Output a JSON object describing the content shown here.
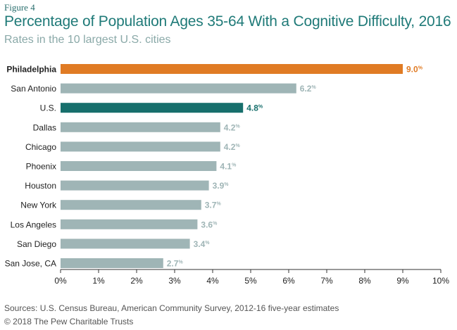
{
  "figure_label": "Figure 4",
  "title": "Percentage of Population Ages 35-64 With a Cognitive Difficulty, 2016",
  "subtitle": "Rates in the 10 largest U.S. cities",
  "source": "Sources: U.S. Census Bureau, American Community Survey, 2012-16 five-year estimates",
  "copyright": "© 2018 The Pew Charitable Trusts",
  "colors": {
    "highlight": "#e07b24",
    "us": "#176f6c",
    "default": "#9fb5b6",
    "axis": "#333333"
  },
  "chart_data": {
    "type": "bar",
    "orientation": "horizontal",
    "categories": [
      "Philadelphia",
      "San Antonio",
      "U.S.",
      "Dallas",
      "Chicago",
      "Phoenix",
      "Houston",
      "New York",
      "Los Angeles",
      "San Diego",
      "San Jose, CA"
    ],
    "values": [
      9.0,
      6.2,
      4.8,
      4.2,
      4.2,
      4.1,
      3.9,
      3.7,
      3.6,
      3.4,
      2.7
    ],
    "value_labels": [
      "9.0",
      "6.2",
      "4.8",
      "4.2",
      "4.2",
      "4.1",
      "3.9",
      "3.7",
      "3.6",
      "3.4",
      "2.7"
    ],
    "value_suffix": "%",
    "highlight": {
      "Philadelphia": "highlight",
      "U.S.": "us"
    },
    "xlim": [
      0,
      10
    ],
    "xticks": [
      "0%",
      "1%",
      "2%",
      "3%",
      "4%",
      "5%",
      "6%",
      "7%",
      "8%",
      "9%",
      "10%"
    ],
    "grid": false
  }
}
